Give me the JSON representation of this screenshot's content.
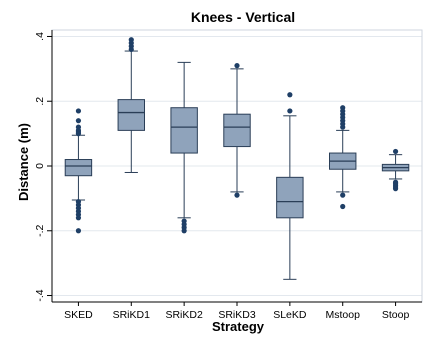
{
  "chart_data": {
    "type": "boxplot",
    "title": "Knees - Vertical",
    "xlabel": "Strategy",
    "ylabel": "Distance (m)",
    "ylim": [
      -0.42,
      0.42
    ],
    "yticks": [
      "-.4",
      "-.2",
      "0",
      ".2",
      ".4"
    ],
    "ytick_values": [
      -0.4,
      -0.2,
      0,
      0.2,
      0.4
    ],
    "grid": true,
    "colors": {
      "box_fill": "#8fa3bb",
      "box_stroke": "#2a3e57",
      "outlier": "#1f3f66",
      "grid": "#e3e8ee"
    },
    "categories": [
      "SKED",
      "SRiKD1",
      "SRiKD2",
      "SRiKD3",
      "SLeKD",
      "Mstoop",
      "Stoop"
    ],
    "boxes": [
      {
        "min": -0.105,
        "q1": -0.03,
        "median": 0.0,
        "q3": 0.02,
        "max": 0.095,
        "outliers": [
          0.17,
          0.14,
          0.12,
          0.11,
          0.105,
          0.1,
          -0.11,
          -0.12,
          -0.13,
          -0.14,
          -0.15,
          -0.16,
          -0.2
        ]
      },
      {
        "min": -0.02,
        "q1": 0.11,
        "median": 0.165,
        "q3": 0.205,
        "max": 0.355,
        "outliers": [
          0.39,
          0.38,
          0.37,
          0.36
        ]
      },
      {
        "min": -0.16,
        "q1": 0.04,
        "median": 0.12,
        "q3": 0.18,
        "max": 0.32,
        "outliers": [
          -0.17,
          -0.18,
          -0.19,
          -0.2
        ]
      },
      {
        "min": -0.08,
        "q1": 0.06,
        "median": 0.12,
        "q3": 0.16,
        "max": 0.3,
        "outliers": [
          0.31,
          -0.09
        ]
      },
      {
        "min": -0.35,
        "q1": -0.16,
        "median": -0.11,
        "q3": -0.035,
        "max": 0.155,
        "outliers": [
          0.22,
          0.17
        ]
      },
      {
        "min": -0.08,
        "q1": -0.01,
        "median": 0.015,
        "q3": 0.04,
        "max": 0.11,
        "outliers": [
          0.18,
          0.17,
          0.16,
          0.15,
          0.14,
          0.13,
          0.12,
          -0.09,
          -0.125
        ]
      },
      {
        "min": -0.04,
        "q1": -0.015,
        "median": -0.005,
        "q3": 0.005,
        "max": 0.035,
        "outliers": [
          0.045,
          -0.05,
          -0.055,
          -0.06,
          -0.065,
          -0.07
        ]
      }
    ]
  }
}
